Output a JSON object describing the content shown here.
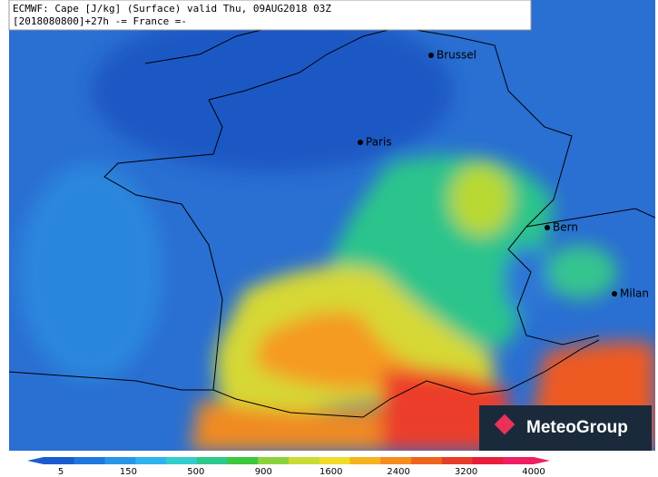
{
  "header": {
    "line1": "ECMWF: Cape [J/kg] (Surface) valid Thu, 09AUG2018 03Z",
    "line2": "[2018080800]+27h -= France =-"
  },
  "cities": [
    "Brussel",
    "Paris",
    "Bern",
    "Milan"
  ],
  "legend": {
    "ticks": [
      "5",
      "150",
      "500",
      "900",
      "1600",
      "2400",
      "3200",
      "4000"
    ],
    "colors": [
      "#1a5ccf",
      "#1e78dc",
      "#2896e6",
      "#2db4ee",
      "#33cccc",
      "#2dc88c",
      "#3cc83c",
      "#8cd23c",
      "#c8dc32",
      "#f0dc28",
      "#f5b41e",
      "#f58c1e",
      "#f0641e",
      "#e63c28",
      "#e61e3c",
      "#f01e64"
    ]
  },
  "logo": "MeteoGroup"
}
